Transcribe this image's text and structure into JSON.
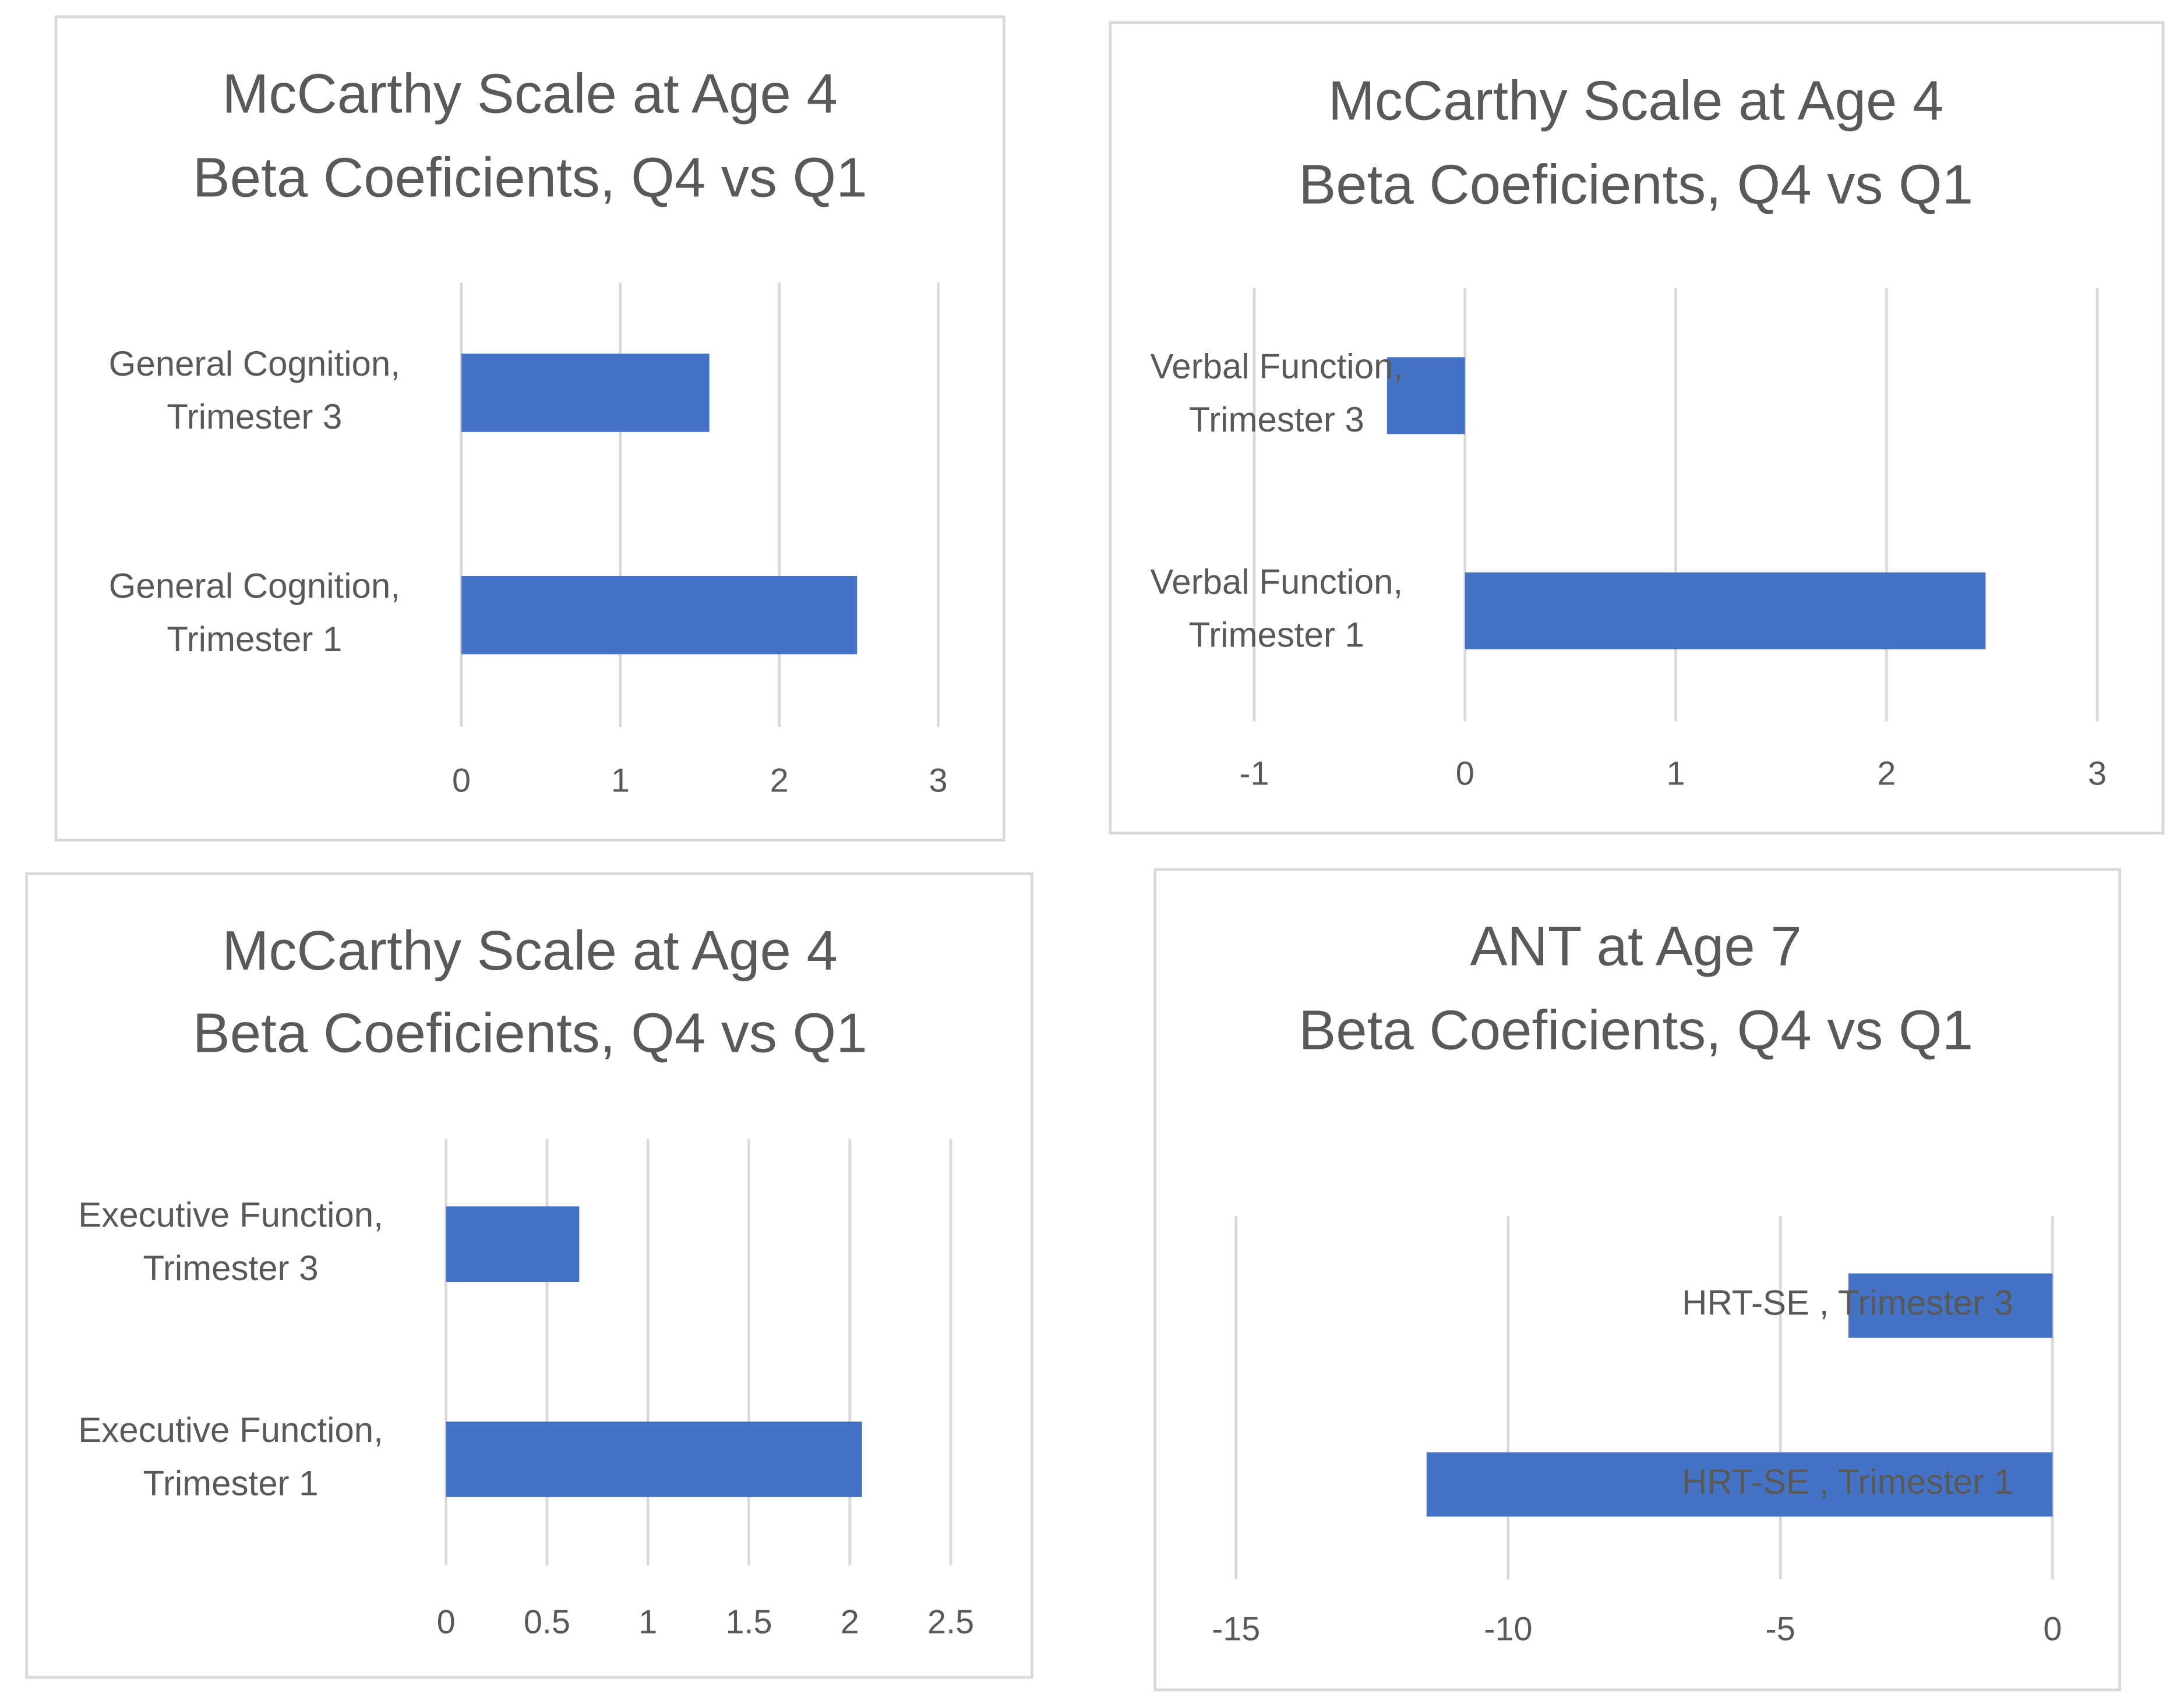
{
  "chart_data": [
    {
      "type": "bar",
      "orientation": "horizontal",
      "title": "McCarthy Scale at Age 4",
      "subtitle": "Beta Coeficients, Q4 vs Q1",
      "categories": [
        "General Cognition, Trimester 3",
        "General Cognition, Trimester 1"
      ],
      "values": [
        1.56,
        2.49
      ],
      "color": "#4472c4",
      "xlim": [
        0,
        3
      ],
      "xticks": [
        0,
        1,
        2,
        3
      ],
      "grid": true
    },
    {
      "type": "bar",
      "orientation": "horizontal",
      "title": "McCarthy Scale at Age 4",
      "subtitle": "Beta Coeficients, Q4 vs Q1",
      "categories": [
        "Verbal Function, Trimester 3",
        "Verbal Function, Trimester 1"
      ],
      "values": [
        -0.37,
        2.47
      ],
      "color": "#4472c4",
      "xlim": [
        -1,
        3
      ],
      "xticks": [
        -1,
        0,
        1,
        2,
        3
      ],
      "grid": true
    },
    {
      "type": "bar",
      "orientation": "horizontal",
      "title": "McCarthy Scale at Age 4",
      "subtitle": "Beta Coeficients, Q4 vs Q1",
      "categories": [
        "Executive Function, Trimester 3",
        "Executive Function, Trimester 1"
      ],
      "values": [
        0.66,
        2.06
      ],
      "color": "#4472c4",
      "xlim": [
        0,
        2.5
      ],
      "xticks": [
        0,
        0.5,
        1,
        1.5,
        2,
        2.5
      ],
      "grid": true
    },
    {
      "type": "bar",
      "orientation": "horizontal",
      "title": "ANT at Age 7",
      "subtitle": "Beta Coeficients, Q4 vs Q1",
      "categories": [
        "HRT-SE , Trimester 3",
        "HRT-SE , Trimester 1"
      ],
      "values": [
        -3.75,
        -11.5
      ],
      "color": "#4472c4",
      "xlim": [
        -15,
        0
      ],
      "xticks": [
        -15,
        -10,
        -5,
        0
      ],
      "grid": true
    }
  ]
}
